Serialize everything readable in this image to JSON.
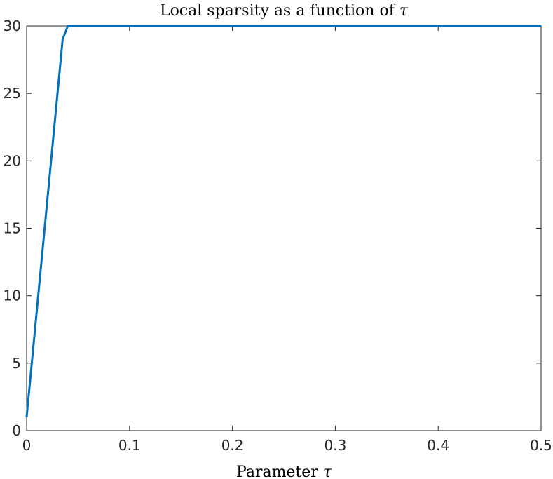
{
  "chart_data": {
    "type": "line",
    "title_prefix": "Local sparsity as a function of ",
    "title_symbol": "τ",
    "xlabel_prefix": "Parameter ",
    "xlabel_symbol": "τ",
    "ylabel": "",
    "xlim": [
      0,
      0.5
    ],
    "ylim": [
      0,
      30
    ],
    "xticks": [
      0,
      0.1,
      0.2,
      0.3,
      0.4,
      0.5
    ],
    "xtick_labels": [
      "0",
      "0.1",
      "0.2",
      "0.3",
      "0.4",
      "0.5"
    ],
    "yticks": [
      0,
      5,
      10,
      15,
      20,
      25,
      30
    ],
    "ytick_labels": [
      "0",
      "5",
      "10",
      "15",
      "20",
      "25",
      "30"
    ],
    "grid": false,
    "box": true,
    "series": [
      {
        "color": "#0072BD",
        "x": [
          0,
          0.005,
          0.01,
          0.015,
          0.02,
          0.025,
          0.03,
          0.035,
          0.04,
          0.045,
          0.05,
          0.1,
          0.15,
          0.2,
          0.25,
          0.3,
          0.35,
          0.4,
          0.45,
          0.5
        ],
        "y": [
          1,
          5,
          9,
          13,
          17,
          21,
          25,
          29,
          30,
          30,
          30,
          30,
          30,
          30,
          30,
          30,
          30,
          30,
          30,
          30
        ]
      }
    ]
  }
}
